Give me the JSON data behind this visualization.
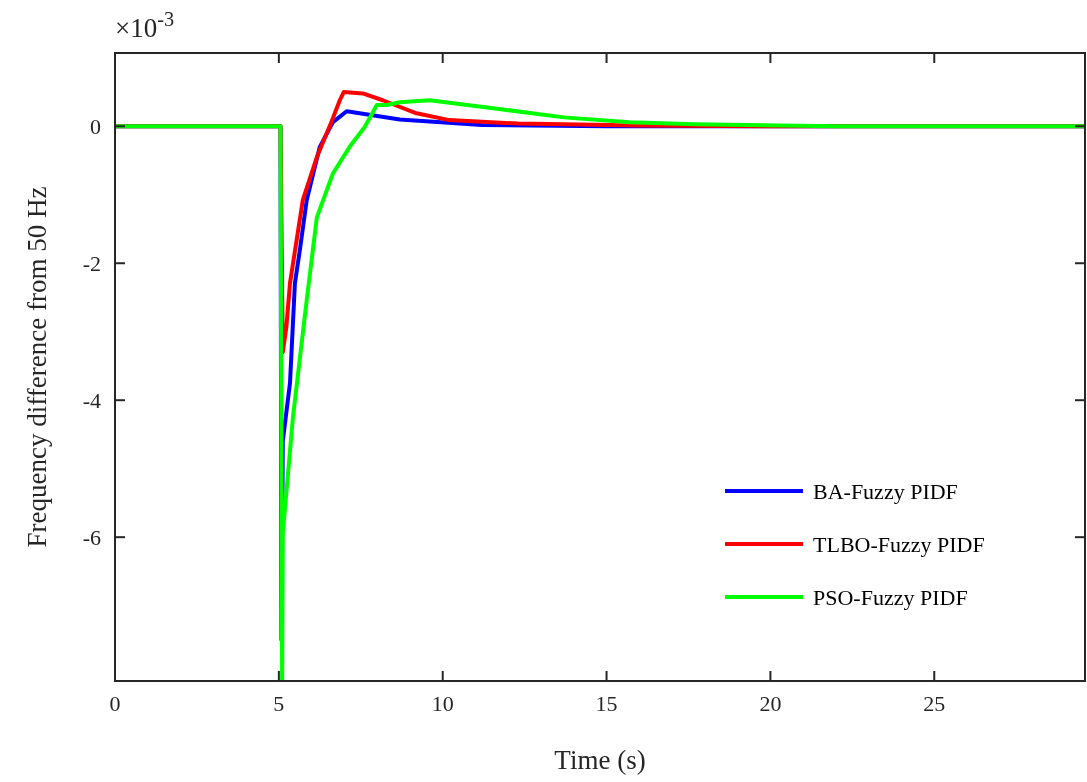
{
  "chart_data": {
    "type": "line",
    "xlabel": "Time (s)",
    "ylabel": "Frequency difference from 50 Hz",
    "annotations": [
      "×10$^{-3}$"
    ],
    "xlim": [
      0,
      29.6
    ],
    "ylim": [
      -8.1,
      1.07
    ],
    "xticks": [
      0,
      5,
      10,
      15,
      20,
      25
    ],
    "yticks": [
      -6,
      -4,
      -2,
      0
    ],
    "grid": false,
    "legend": "bottom right",
    "line_style": "solid",
    "marker": "none",
    "series": [
      {
        "name": "BA-Fuzzy PIDF",
        "color": "#0000ff",
        "x": [
          0,
          5.05,
          5.08,
          5.12,
          5.34,
          5.49,
          5.64,
          5.85,
          6.25,
          6.65,
          7.07,
          8.69,
          11.2,
          15,
          20,
          29.6
        ],
        "values": [
          0,
          0,
          -7.5,
          -4.6,
          -3.75,
          -2.29,
          -1.81,
          -1.08,
          -0.3,
          0.06,
          0.22,
          0.1,
          0.02,
          0,
          0,
          0
        ]
      },
      {
        "name": "TLBO-Fuzzy PIDF",
        "color": "#ff0000",
        "x": [
          0,
          5.05,
          5.1,
          5.12,
          5.23,
          5.34,
          5.73,
          6.16,
          6.6,
          6.86,
          6.98,
          7.56,
          8.17,
          9.2,
          10.2,
          12.3,
          16,
          20,
          29.6
        ],
        "values": [
          0,
          0,
          -2.35,
          -3.3,
          -2.93,
          -2.29,
          -1.08,
          -0.45,
          0.06,
          0.38,
          0.5,
          0.48,
          0.38,
          0.19,
          0.09,
          0.04,
          0.01,
          0,
          0
        ]
      },
      {
        "name": "PSO-Fuzzy PIDF",
        "color": "#00ff00",
        "x": [
          0,
          5.05,
          5.1,
          5.12,
          5.43,
          5.85,
          6.16,
          6.65,
          7.16,
          7.62,
          7.99,
          8.29,
          8.69,
          9.6,
          11.6,
          13.7,
          15.7,
          17.7,
          22,
          29.6
        ],
        "values": [
          0,
          0,
          -8.1,
          -5.94,
          -4.25,
          -2.54,
          -1.33,
          -0.69,
          -0.3,
          -0.01,
          0.31,
          0.31,
          0.35,
          0.38,
          0.26,
          0.13,
          0.06,
          0.03,
          0,
          0
        ]
      }
    ]
  }
}
